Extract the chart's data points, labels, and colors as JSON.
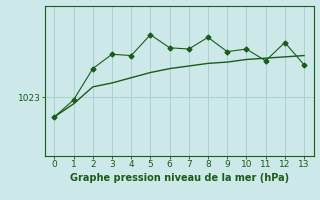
{
  "title": "Graphe pression niveau de la mer (hPa)",
  "background_color": "#cce8e8",
  "plot_background": "#cce8e8",
  "line_color": "#1a5c1a",
  "x_values": [
    0,
    1,
    2,
    3,
    4,
    5,
    6,
    7,
    8,
    9,
    10,
    11,
    12,
    13
  ],
  "y_jagged": [
    1021.5,
    1022.8,
    1025.2,
    1026.3,
    1026.2,
    1027.8,
    1026.8,
    1026.7,
    1027.6,
    1026.5,
    1026.7,
    1025.8,
    1027.2,
    1025.5
  ],
  "y_smooth": [
    1021.5,
    1022.5,
    1023.8,
    1024.1,
    1024.5,
    1024.9,
    1025.2,
    1025.4,
    1025.6,
    1025.7,
    1025.9,
    1026.0,
    1026.1,
    1026.2
  ],
  "y_tick": 1023,
  "ylim": [
    1018.5,
    1030.0
  ],
  "xlim": [
    -0.5,
    13.5
  ],
  "grid_color": "#aad0d0",
  "title_color": "#1a5c1a",
  "tick_color": "#1a5c1a",
  "title_fontsize": 7.0,
  "tick_fontsize": 6.5
}
